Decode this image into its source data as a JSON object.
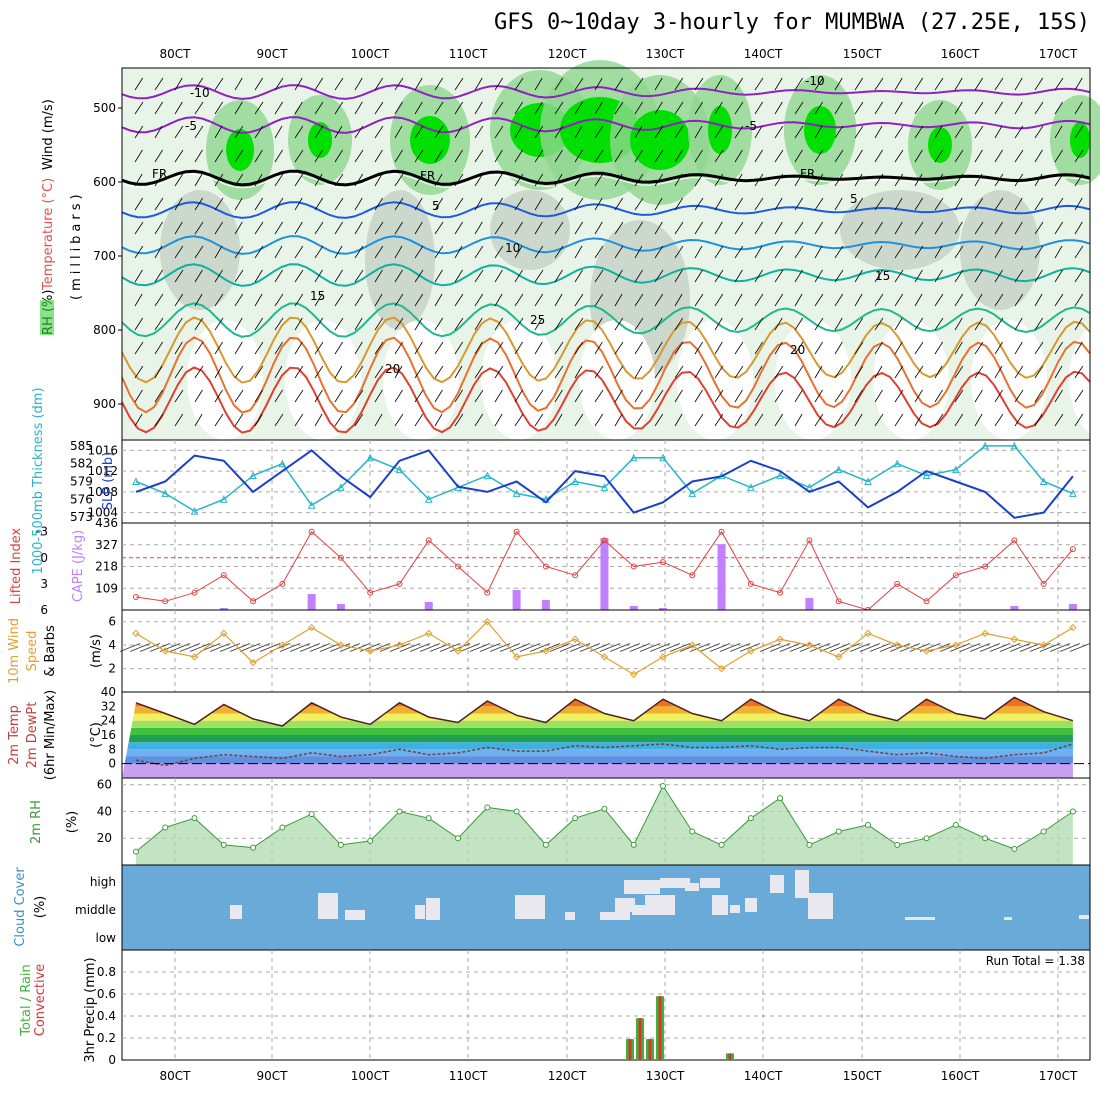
{
  "header": {
    "title": "GFS 0~10day 3-hourly for MUMBWA (27.25E, 15S)"
  },
  "colors": {
    "precip_total": "#3cb43c",
    "precip_conv": "#e03030",
    "cape_bar": "#c080ff",
    "li_line": "#e04040",
    "wind_line": "#e0a030",
    "rh_line": "#3a9a3a",
    "cloud_bg": "#6aaad8",
    "slp_line": "#1a40c8",
    "thick_line": "#28b4c8"
  },
  "time_axis": {
    "ticks": [
      "80CT",
      "90CT",
      "100CT",
      "110CT",
      "120CT",
      "130CT",
      "140CT",
      "150CT",
      "160CT",
      "170CT"
    ]
  },
  "panels": {
    "cross_section": {
      "left_labels": [
        "RH (%)",
        "Temperature (°C)",
        "Wind (m/s)"
      ],
      "ylabel": "(millibars)",
      "ytick_labels": [
        "500",
        "600",
        "700",
        "800",
        "900"
      ]
    },
    "slp": {
      "left_label_thick": "1000-500mb Thickness (dm)",
      "left_label_slp": "SLP (mb)",
      "thick_ticks": [
        "585",
        "582",
        "579",
        "576",
        "573"
      ],
      "slp_ticks": [
        "1016",
        "1012",
        "1008",
        "1004"
      ]
    },
    "cape": {
      "left_label_li": "Lifted Index",
      "left_label_cape": "CAPE (J/kg)",
      "li_ticks": [
        "-3",
        "0",
        "3",
        "6"
      ],
      "cape_ticks": [
        "436",
        "327",
        "218",
        "109"
      ]
    },
    "wind": {
      "left_label_a": "10m Wind",
      "left_label_b": "Speed",
      "left_label_c": "& Barbs",
      "unit": "(m/s)",
      "ticks": [
        "6",
        "4",
        "2"
      ]
    },
    "temp": {
      "left_label_a": "2m Temp",
      "left_label_b": "2m DewPt",
      "left_label_c": "(6hr Min/Max)",
      "unit": "(°C)",
      "ticks": [
        "40",
        "32",
        "24",
        "16",
        "8",
        "0"
      ]
    },
    "rh": {
      "left_label": "2m RH",
      "unit": "(%)",
      "ticks": [
        "60",
        "40",
        "20"
      ]
    },
    "cloud": {
      "left_label": "Cloud Cover",
      "unit": "(%)",
      "ticks": [
        "high",
        "middle",
        "low"
      ]
    },
    "precip": {
      "left_label_a": "Total / Rain",
      "left_label_b": "Convective",
      "ylabel": "3hr Precip (mm)",
      "run_total": "Run Total = 1.38",
      "ticks": [
        "0.8",
        "0.6",
        "0.4",
        "0.2",
        "0"
      ]
    }
  },
  "chart_data": [
    {
      "type": "line",
      "title": "SLP (mb) and 1000-500mb Thickness (dm)",
      "x": [
        76,
        79,
        82,
        85,
        88,
        91,
        94,
        97,
        100,
        103,
        106,
        109,
        112,
        115,
        118,
        121,
        124,
        127,
        130,
        133,
        136,
        139,
        142,
        145,
        148,
        151,
        154,
        157,
        160,
        163,
        166,
        169,
        172
      ],
      "series": [
        {
          "name": "SLP (mb)",
          "values": [
            1008,
            1010,
            1015,
            1014,
            1008,
            1012,
            1016,
            1011,
            1007,
            1014,
            1016,
            1009,
            1008,
            1010,
            1006,
            1012,
            1011,
            1004,
            1006,
            1010,
            1011,
            1014,
            1012,
            1008,
            1010,
            1005,
            1008,
            1012,
            1010,
            1008,
            1003,
            1004,
            1011
          ]
        },
        {
          "name": "1000-500mb Thickness (dm)",
          "values": [
            579,
            577,
            574,
            576,
            580,
            582,
            575,
            578,
            583,
            581,
            576,
            578,
            580,
            577,
            576,
            579,
            578,
            583,
            583,
            577,
            580,
            578,
            580,
            578,
            581,
            579,
            582,
            580,
            581,
            585,
            585,
            579,
            577
          ]
        }
      ],
      "ylim_slp": [
        1002,
        1018
      ],
      "ylim_thick": [
        572,
        586
      ]
    },
    {
      "type": "bar",
      "title": "CAPE (J/kg) and Lifted Index",
      "x": [
        76,
        79,
        82,
        85,
        88,
        91,
        94,
        97,
        100,
        103,
        106,
        109,
        112,
        115,
        118,
        121,
        124,
        127,
        130,
        133,
        136,
        139,
        142,
        145,
        148,
        151,
        154,
        157,
        160,
        163,
        166,
        169,
        172
      ],
      "series": [
        {
          "name": "CAPE (J/kg)",
          "values": [
            0,
            0,
            0,
            10,
            0,
            0,
            80,
            30,
            0,
            0,
            40,
            0,
            0,
            100,
            50,
            0,
            360,
            20,
            10,
            0,
            330,
            0,
            0,
            60,
            0,
            0,
            0,
            0,
            0,
            0,
            20,
            0,
            30
          ]
        },
        {
          "name": "Lifted Index",
          "values": [
            4.5,
            5,
            4,
            2,
            5,
            3,
            -3,
            0,
            4,
            3,
            -2,
            1,
            4,
            -3,
            1,
            2,
            -2,
            1,
            0.5,
            2,
            -3,
            3,
            4,
            -2,
            5,
            6,
            3,
            5,
            2,
            1,
            -2,
            3,
            -1
          ]
        }
      ],
      "ylim_cape": [
        0,
        436
      ],
      "ylim_li": [
        6,
        -4
      ]
    },
    {
      "type": "line",
      "title": "10m Wind Speed (m/s)",
      "x": [
        76,
        79,
        82,
        85,
        88,
        91,
        94,
        97,
        100,
        103,
        106,
        109,
        112,
        115,
        118,
        121,
        124,
        127,
        130,
        133,
        136,
        139,
        142,
        145,
        148,
        151,
        154,
        157,
        160,
        163,
        166,
        169,
        172
      ],
      "series": [
        {
          "name": "10m Wind Speed",
          "values": [
            5,
            3.5,
            3,
            5,
            2.5,
            4,
            5.5,
            4,
            3.5,
            4,
            5,
            3.5,
            6,
            3,
            3.5,
            4.5,
            3,
            1.5,
            3,
            4,
            2,
            3.5,
            4.5,
            4,
            3,
            5,
            4,
            3.5,
            4,
            5,
            4.5,
            4,
            5.5
          ]
        }
      ],
      "ylim": [
        0,
        7
      ]
    },
    {
      "type": "area",
      "title": "2m Temp / 2m DewPt (°C)",
      "x": [
        76,
        79,
        82,
        85,
        88,
        91,
        94,
        97,
        100,
        103,
        106,
        109,
        112,
        115,
        118,
        121,
        124,
        127,
        130,
        133,
        136,
        139,
        142,
        145,
        148,
        151,
        154,
        157,
        160,
        163,
        166,
        169,
        172
      ],
      "series": [
        {
          "name": "2m Temp",
          "values": [
            34,
            28,
            22,
            33,
            25,
            21,
            34,
            26,
            22,
            34,
            26,
            23,
            35,
            27,
            23,
            36,
            28,
            24,
            36,
            28,
            24,
            36,
            28,
            24,
            36,
            28,
            24,
            36,
            28,
            25,
            37,
            29,
            24
          ]
        },
        {
          "name": "2m DewPt",
          "values": [
            2,
            -1,
            3,
            5,
            4,
            3,
            6,
            4,
            5,
            8,
            5,
            6,
            9,
            7,
            7,
            10,
            9,
            10,
            11,
            9,
            9,
            10,
            8,
            9,
            9,
            7,
            5,
            6,
            4,
            3,
            5,
            6,
            11
          ]
        }
      ],
      "ylim": [
        -8,
        40
      ]
    },
    {
      "type": "area",
      "title": "2m RH (%)",
      "x": [
        76,
        79,
        82,
        85,
        88,
        91,
        94,
        97,
        100,
        103,
        106,
        109,
        112,
        115,
        118,
        121,
        124,
        127,
        130,
        133,
        136,
        139,
        142,
        145,
        148,
        151,
        154,
        157,
        160,
        163,
        166,
        169,
        172
      ],
      "series": [
        {
          "name": "2m RH",
          "values": [
            10,
            28,
            35,
            15,
            13,
            28,
            38,
            15,
            18,
            40,
            35,
            20,
            43,
            40,
            15,
            35,
            42,
            15,
            59,
            25,
            15,
            35,
            50,
            15,
            25,
            30,
            15,
            20,
            30,
            20,
            12,
            25,
            40
          ]
        }
      ],
      "ylim": [
        0,
        65
      ]
    },
    {
      "type": "bar",
      "title": "3hr Precip (mm)",
      "x": [
        126,
        127,
        128,
        129,
        130,
        136
      ],
      "series": [
        {
          "name": "Total / Rain",
          "values": [
            0.19,
            0.38,
            0.19,
            0.58,
            0.0,
            0.06
          ]
        },
        {
          "name": "Convective",
          "values": [
            0.19,
            0.38,
            0.19,
            0.58,
            0.0,
            0.06
          ]
        }
      ],
      "ylim": [
        0,
        1.0
      ]
    }
  ]
}
